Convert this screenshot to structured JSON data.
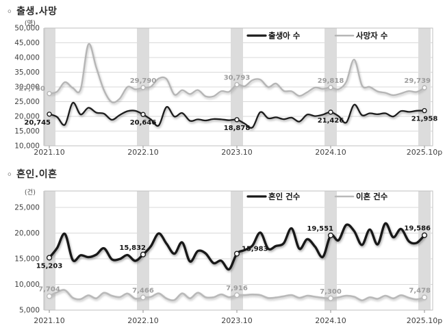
{
  "sections": [
    {
      "bullet": "◦",
      "title": "출생.사망"
    },
    {
      "bullet": "◦",
      "title": "혼인.이혼"
    }
  ],
  "chart_data": [
    {
      "type": "line",
      "title": "출생.사망",
      "unit_label": "(명)",
      "x_ticks": [
        "2021.10",
        "2022.10",
        "2023.10",
        "2024.10",
        "2025.10p"
      ],
      "x_range_note": "monthly, 2021.10 - 2025.10(provisional)",
      "ylim": [
        10000,
        50000
      ],
      "ytick_step": 5000,
      "grid": true,
      "legend_position": "top-center-inside",
      "band_color": "#dcdcdc",
      "grid_color": "#d8d8d8",
      "border_color": "#bfbfbf",
      "series": [
        {
          "key": "births",
          "name": "출생아 수",
          "color": "#1c1c1c",
          "values": [
            20745,
            19800,
            17180,
            24598,
            20654,
            22925,
            21295,
            20908,
            18830,
            20441,
            21758,
            21885,
            20646,
            18982,
            16896,
            23179,
            19939,
            21138,
            18484,
            18988,
            18615,
            19102,
            18984,
            18707,
            18878,
            17531,
            16253,
            21442,
            19362,
            19669,
            19049,
            19547,
            18242,
            20601,
            20098,
            20590,
            21426,
            20095,
            17913,
            23947,
            20397,
            21041,
            20717,
            21045,
            19953,
            21803,
            21526,
            21900,
            21958
          ],
          "labeled_points": [
            {
              "i": 0,
              "text": "20,745",
              "pos": "below-left"
            },
            {
              "i": 12,
              "text": "20,646",
              "pos": "below"
            },
            {
              "i": 24,
              "text": "18,878",
              "pos": "below"
            },
            {
              "i": 36,
              "text": "21,426",
              "pos": "below"
            },
            {
              "i": 48,
              "text": "21,958",
              "pos": "below"
            }
          ]
        },
        {
          "key": "deaths",
          "name": "사망자 수",
          "color": "#b5b5b5",
          "values": [
            27750,
            28426,
            31634,
            29686,
            29189,
            44487,
            36697,
            28859,
            24850,
            26030,
            30001,
            29199,
            29790,
            30107,
            32865,
            32703,
            27390,
            28922,
            27581,
            28958,
            26820,
            26820,
            28555,
            28364,
            30793,
            30255,
            32317,
            32490,
            29977,
            31160,
            28659,
            28546,
            26942,
            28240,
            29792,
            29362,
            29818,
            29219,
            31741,
            39300,
            30500,
            30000,
            28500,
            28000,
            27200,
            27800,
            28600,
            28300,
            29739
          ],
          "labeled_points": [
            {
              "i": 0,
              "text": "27,750",
              "pos": "left"
            },
            {
              "i": 12,
              "text": "29,790",
              "pos": "above"
            },
            {
              "i": 24,
              "text": "30,793",
              "pos": "above"
            },
            {
              "i": 36,
              "text": "29,818",
              "pos": "above"
            },
            {
              "i": 48,
              "text": "29,739",
              "pos": "above-end"
            }
          ]
        }
      ]
    },
    {
      "type": "line",
      "title": "혼인.이혼",
      "unit_label": "(건)",
      "x_ticks": [
        "2021.10",
        "2022.10",
        "2023.10",
        "2024.10",
        "2025.10p"
      ],
      "x_range_note": "monthly, 2021.10 - 2025.10(provisional)",
      "ylim": [
        5000,
        25000
      ],
      "ytick_step": 5000,
      "grid": true,
      "legend_position": "top-center-inside",
      "band_color": "#dcdcdc",
      "grid_color": "#d8d8d8",
      "border_color": "#bfbfbf",
      "series": [
        {
          "key": "marriages",
          "name": "혼인 건수",
          "color": "#181818",
          "values": [
            15203,
            17088,
            19841,
            14753,
            15681,
            15316,
            15795,
            17041,
            14898,
            14947,
            15718,
            14594,
            15832,
            17458,
            19928,
            17926,
            15986,
            18192,
            14475,
            16491,
            16053,
            14155,
            14610,
            12941,
            15983,
            16695,
            17582,
            20097,
            16949,
            17484,
            18039,
            20923,
            16948,
            18811,
            17350,
            15368,
            19551,
            18600,
            21600,
            20400,
            17700,
            20700,
            17800,
            21900,
            19200,
            20800,
            18400,
            18100,
            19586
          ],
          "labeled_points": [
            {
              "i": 0,
              "text": "15,203",
              "pos": "below"
            },
            {
              "i": 12,
              "text": "15,832",
              "pos": "above-left"
            },
            {
              "i": 24,
              "text": "15,983",
              "pos": "right"
            },
            {
              "i": 36,
              "text": "19,551",
              "pos": "above-left"
            },
            {
              "i": 48,
              "text": "19,586",
              "pos": "above-end"
            }
          ]
        },
        {
          "key": "divorces",
          "name": "이혼 건수",
          "color": "#b9b9b9",
          "values": [
            7704,
            8486,
            8900,
            7400,
            7134,
            7882,
            7300,
            8372,
            7806,
            7535,
            8227,
            7232,
            7466,
            7588,
            8256,
            7251,
            6960,
            8255,
            7288,
            8393,
            7504,
            7500,
            8057,
            7504,
            7916,
            7923,
            8036,
            7926,
            7355,
            7450,
            7700,
            7923,
            7400,
            7800,
            7600,
            7400,
            7300,
            7500,
            7800,
            7600,
            6900,
            7500,
            7200,
            7800,
            7300,
            7900,
            7400,
            7100,
            7478
          ],
          "labeled_points": [
            {
              "i": 0,
              "text": "7,704",
              "pos": "above"
            },
            {
              "i": 12,
              "text": "7,466",
              "pos": "above"
            },
            {
              "i": 24,
              "text": "7,916",
              "pos": "above"
            },
            {
              "i": 36,
              "text": "7,300",
              "pos": "above"
            },
            {
              "i": 48,
              "text": "7,478",
              "pos": "above-end"
            }
          ]
        }
      ]
    }
  ]
}
